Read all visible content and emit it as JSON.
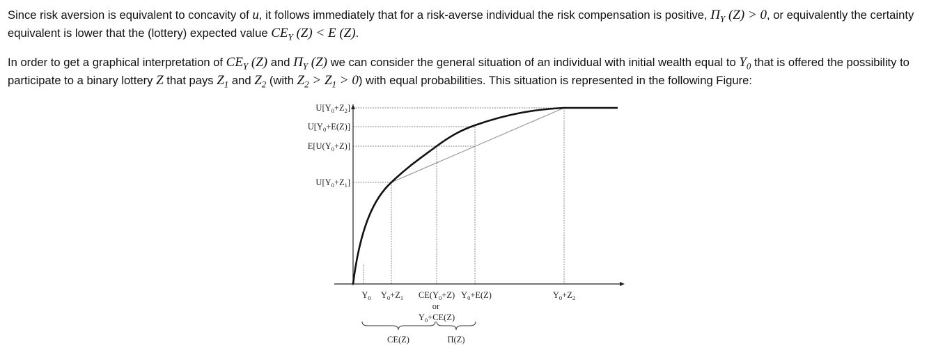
{
  "paragraphs": [
    [
      {
        "text": "Since risk aversion is equivalent to concavity of "
      },
      {
        "math": "u"
      },
      {
        "text": ", it follows immediately that for a risk-averse individual the risk compensation is positive, "
      },
      {
        "math": "Π"
      },
      {
        "sub": "Y"
      },
      {
        "math": " (Z) > 0"
      },
      {
        "text": ", or equivalently the certainty equivalent is lower that the (lottery) expected value "
      },
      {
        "math": "CE"
      },
      {
        "sub": "Y"
      },
      {
        "math": " (Z) < E (Z)"
      },
      {
        "text": "."
      }
    ],
    [
      {
        "text": "In order to get a graphical interpretation of "
      },
      {
        "math": "CE"
      },
      {
        "sub": "Y"
      },
      {
        "math": " (Z)"
      },
      {
        "text": " and "
      },
      {
        "math": "Π"
      },
      {
        "sub": "Y"
      },
      {
        "math": " (Z)"
      },
      {
        "text": " we can consider the general situation of an individual with initial wealth equal to "
      },
      {
        "math": "Y"
      },
      {
        "sub": "0"
      },
      {
        "text": " that is offered the possibility to participate to a binary lottery "
      },
      {
        "math": "Z"
      },
      {
        "text": " that pays "
      },
      {
        "math": "Z"
      },
      {
        "sub": "1"
      },
      {
        "text": " and "
      },
      {
        "math": "Z"
      },
      {
        "sub": "2"
      },
      {
        "text": " (with "
      },
      {
        "math": "Z"
      },
      {
        "sub": "2"
      },
      {
        "math": " > Z"
      },
      {
        "sub": "1"
      },
      {
        "math": " > 0"
      },
      {
        "text": ") with equal probabilities. This situation is represented in the following Figure:"
      }
    ]
  ],
  "figure": {
    "y_labels": [
      [
        {
          "text": "U[Y"
        },
        {
          "sub": "0"
        },
        {
          "text": "+Z"
        },
        {
          "sub": "2"
        },
        {
          "text": "]"
        }
      ],
      [
        {
          "text": "U[Y"
        },
        {
          "sub": "0"
        },
        {
          "text": "+E(Z)]"
        }
      ],
      [
        {
          "text": "E[U(Y"
        },
        {
          "sub": "0"
        },
        {
          "text": "+Z)]"
        }
      ],
      [
        {
          "text": "U[Y"
        },
        {
          "sub": "0"
        },
        {
          "text": "+Z"
        },
        {
          "sub": "1"
        },
        {
          "text": "]"
        }
      ]
    ],
    "x_labels": [
      [
        {
          "text": "Y"
        },
        {
          "sub": "0"
        }
      ],
      [
        {
          "text": "Y"
        },
        {
          "sub": "0"
        },
        {
          "text": "+Z"
        },
        {
          "sub": "1"
        }
      ],
      [
        {
          "text": "CE(Y"
        },
        {
          "sub": "0"
        },
        {
          "text": "+Z)"
        }
      ],
      [
        {
          "text": "or"
        }
      ],
      [
        {
          "text": "Y"
        },
        {
          "sub": "0"
        },
        {
          "text": "+CE(Z)"
        }
      ],
      [
        {
          "text": "Y"
        },
        {
          "sub": "0"
        },
        {
          "text": "+E(Z)"
        }
      ],
      [
        {
          "text": "Y"
        },
        {
          "sub": "0"
        },
        {
          "text": "+Z"
        },
        {
          "sub": "2"
        }
      ]
    ],
    "braces": [
      [
        {
          "text": "CE(Z)"
        }
      ],
      [
        {
          "text": "Π(Z)"
        }
      ]
    ]
  }
}
